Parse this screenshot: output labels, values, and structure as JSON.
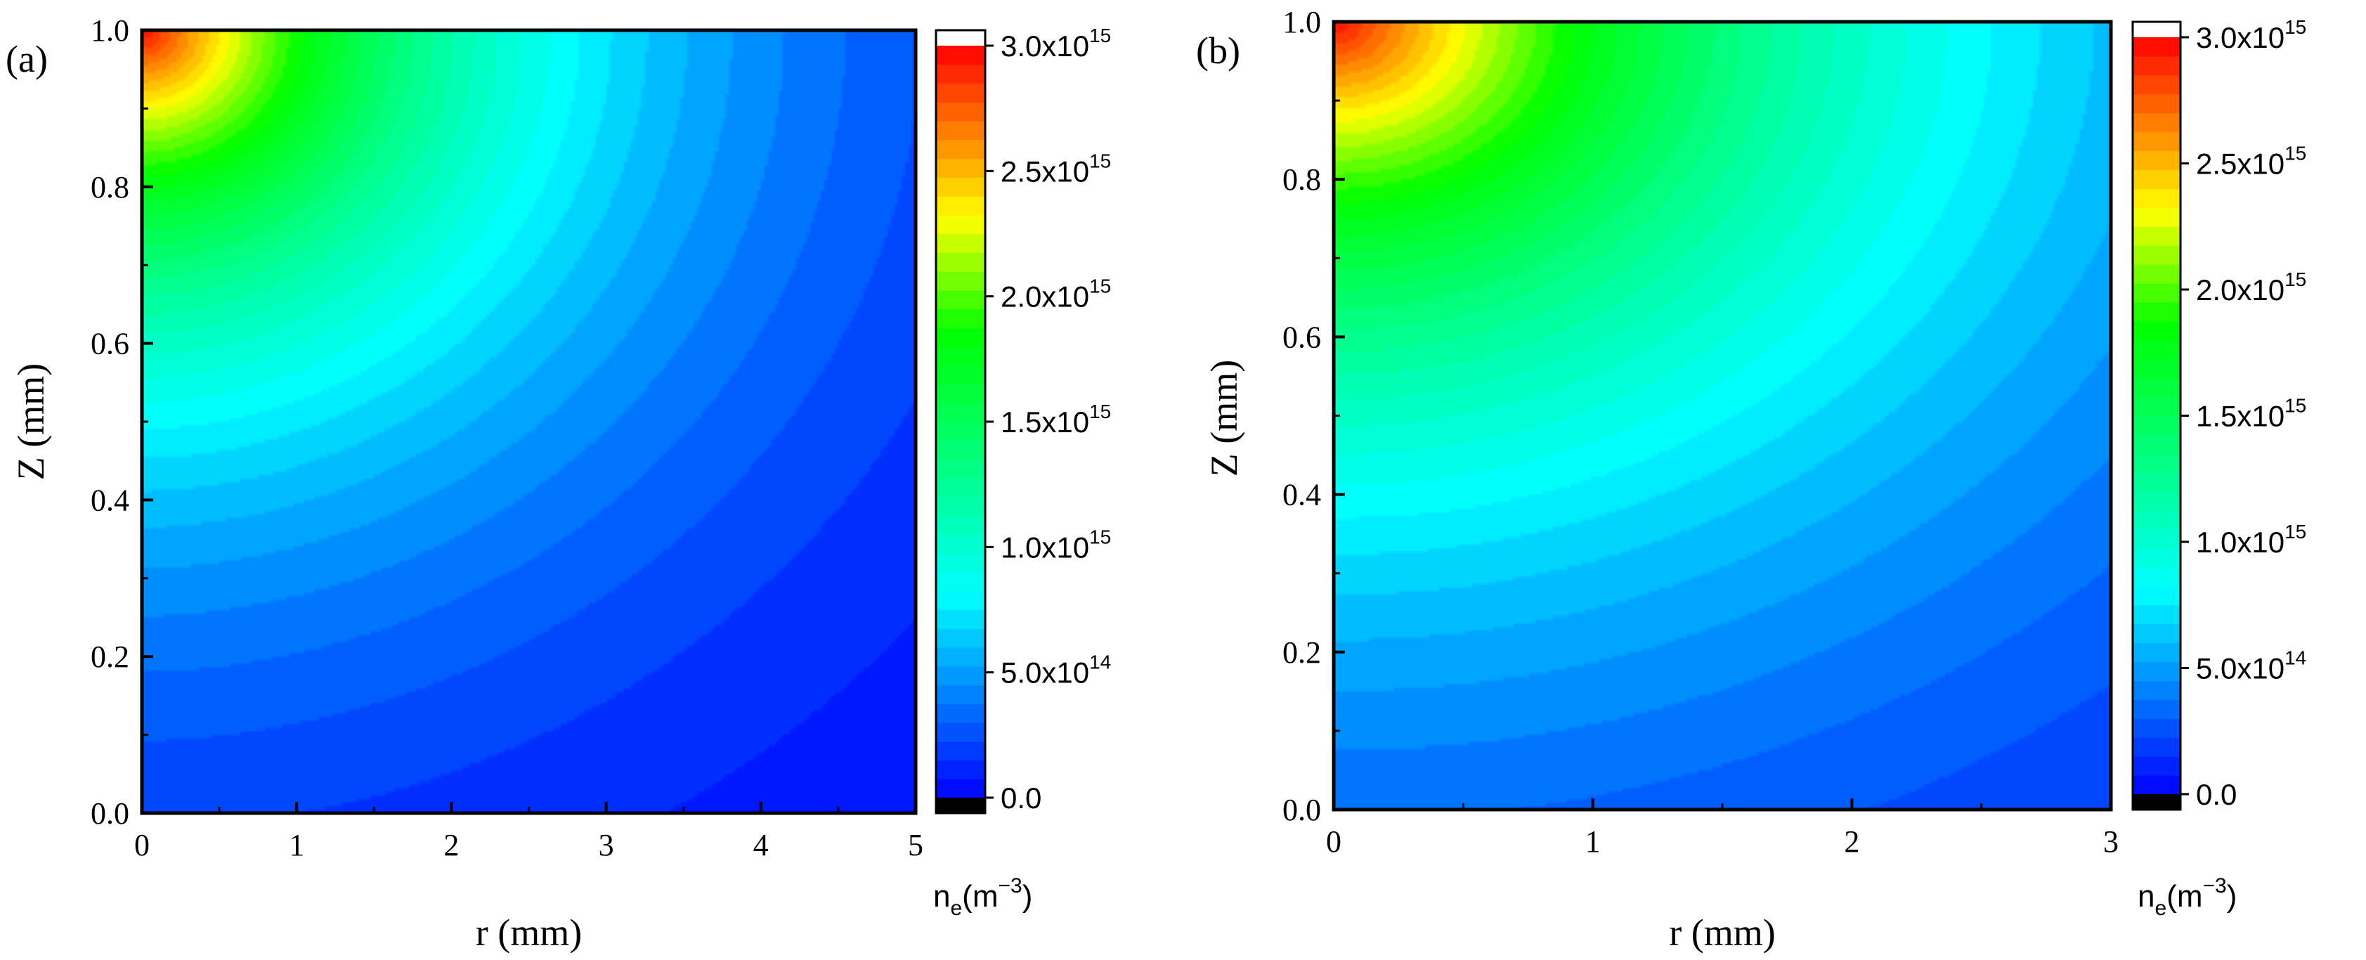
{
  "figure": {
    "panels": [
      {
        "label": "(a)",
        "xlabel": "r (mm)",
        "ylabel": "Z (mm)",
        "xticks": [
          "0",
          "1",
          "2",
          "3",
          "4",
          "5"
        ],
        "yticks": [
          "0.0",
          "0.2",
          "0.4",
          "0.6",
          "0.8",
          "1.0"
        ],
        "colorbar": {
          "ticks": [
            {
              "mant": "0.0",
              "exp": ""
            },
            {
              "mant": "5.0x10",
              "exp": "14"
            },
            {
              "mant": "1.0x10",
              "exp": "15"
            },
            {
              "mant": "1.5x10",
              "exp": "15"
            },
            {
              "mant": "2.0x10",
              "exp": "15"
            },
            {
              "mant": "2.5x10",
              "exp": "15"
            },
            {
              "mant": "3.0x10",
              "exp": "15"
            }
          ],
          "label_main": "n",
          "label_sub": "e",
          "label_paren_open": "(m",
          "label_sup": "−3",
          "label_paren_close": ")"
        }
      },
      {
        "label": "(b)",
        "xlabel": "r (mm)",
        "ylabel": "Z (mm)",
        "xticks": [
          "0",
          "1",
          "2",
          "3"
        ],
        "yticks": [
          "0.0",
          "0.2",
          "0.4",
          "0.6",
          "0.8",
          "1.0"
        ],
        "colorbar": {
          "ticks": [
            {
              "mant": "0.0",
              "exp": ""
            },
            {
              "mant": "5.0x10",
              "exp": "14"
            },
            {
              "mant": "1.0x10",
              "exp": "15"
            },
            {
              "mant": "1.5x10",
              "exp": "15"
            },
            {
              "mant": "2.0x10",
              "exp": "15"
            },
            {
              "mant": "2.5x10",
              "exp": "15"
            },
            {
              "mant": "3.0x10",
              "exp": "15"
            }
          ],
          "label_main": "n",
          "label_sub": "e",
          "label_paren_open": "(m",
          "label_sup": "−3",
          "label_paren_close": ")"
        }
      }
    ]
  },
  "chart_data": [
    {
      "type": "heatmap",
      "panel": "(a)",
      "xlabel": "r (mm)",
      "ylabel": "Z (mm)",
      "xlim": [
        0,
        5
      ],
      "ylim": [
        0,
        1
      ],
      "colorbar_label": "ne(m−3)",
      "color_range": [
        0,
        3000000000000000.0
      ],
      "levels": 40,
      "colorscale": [
        "#000000",
        "#0000ff",
        "#00ffff",
        "#00ff00",
        "#ffff00",
        "#ff0000",
        "#ffffff"
      ],
      "peak_location": {
        "r": 0,
        "z": 1.0
      },
      "peak_value": 3000000000000000.0,
      "samples": [
        {
          "r": 0,
          "z": 1.0,
          "ne": 3000000000000000.0
        },
        {
          "r": 0,
          "z": 0.8,
          "ne": 1800000000000000.0
        },
        {
          "r": 0,
          "z": 0.6,
          "ne": 1300000000000000.0
        },
        {
          "r": 0,
          "z": 0.4,
          "ne": 650000000000000.0
        },
        {
          "r": 0,
          "z": 0.2,
          "ne": 350000000000000.0
        },
        {
          "r": 0,
          "z": 0.0,
          "ne": 220000000000000.0
        },
        {
          "r": 1,
          "z": 1.0,
          "ne": 2400000000000000.0
        },
        {
          "r": 2,
          "z": 1.0,
          "ne": 1700000000000000.0
        },
        {
          "r": 3,
          "z": 1.0,
          "ne": 800000000000000.0
        },
        {
          "r": 5,
          "z": 1.0,
          "ne": 300000000000000.0
        },
        {
          "r": 2,
          "z": 0.5,
          "ne": 600000000000000.0
        },
        {
          "r": 4,
          "z": 0.2,
          "ne": 80000000000000.0
        },
        {
          "r": 5,
          "z": 0.0,
          "ne": 50000000000000.0
        }
      ]
    },
    {
      "type": "heatmap",
      "panel": "(b)",
      "xlabel": "r (mm)",
      "ylabel": "Z (mm)",
      "xlim": [
        0,
        3
      ],
      "ylim": [
        0,
        1
      ],
      "colorbar_label": "ne(m−3)",
      "color_range": [
        0,
        3000000000000000.0
      ],
      "levels": 40,
      "colorscale": [
        "#000000",
        "#0000ff",
        "#00ffff",
        "#00ff00",
        "#ffff00",
        "#ff0000",
        "#ffffff"
      ],
      "peak_location": {
        "r": 0,
        "z": 1.0
      },
      "peak_value": 3000000000000000.0,
      "samples": [
        {
          "r": 0,
          "z": 1.0,
          "ne": 3000000000000000.0
        },
        {
          "r": 0,
          "z": 0.8,
          "ne": 1850000000000000.0
        },
        {
          "r": 0,
          "z": 0.6,
          "ne": 1500000000000000.0
        },
        {
          "r": 0,
          "z": 0.4,
          "ne": 900000000000000.0
        },
        {
          "r": 0,
          "z": 0.2,
          "ne": 500000000000000.0
        },
        {
          "r": 0,
          "z": 0.0,
          "ne": 350000000000000.0
        },
        {
          "r": 1,
          "z": 1.0,
          "ne": 2300000000000000.0
        },
        {
          "r": 2,
          "z": 1.0,
          "ne": 1600000000000000.0
        },
        {
          "r": 3,
          "z": 1.0,
          "ne": 1000000000000000.0
        },
        {
          "r": 1.5,
          "z": 0.5,
          "ne": 750000000000000.0
        },
        {
          "r": 3,
          "z": 0.2,
          "ne": 150000000000000.0
        },
        {
          "r": 3,
          "z": 0.0,
          "ne": 100000000000000.0
        }
      ]
    }
  ]
}
